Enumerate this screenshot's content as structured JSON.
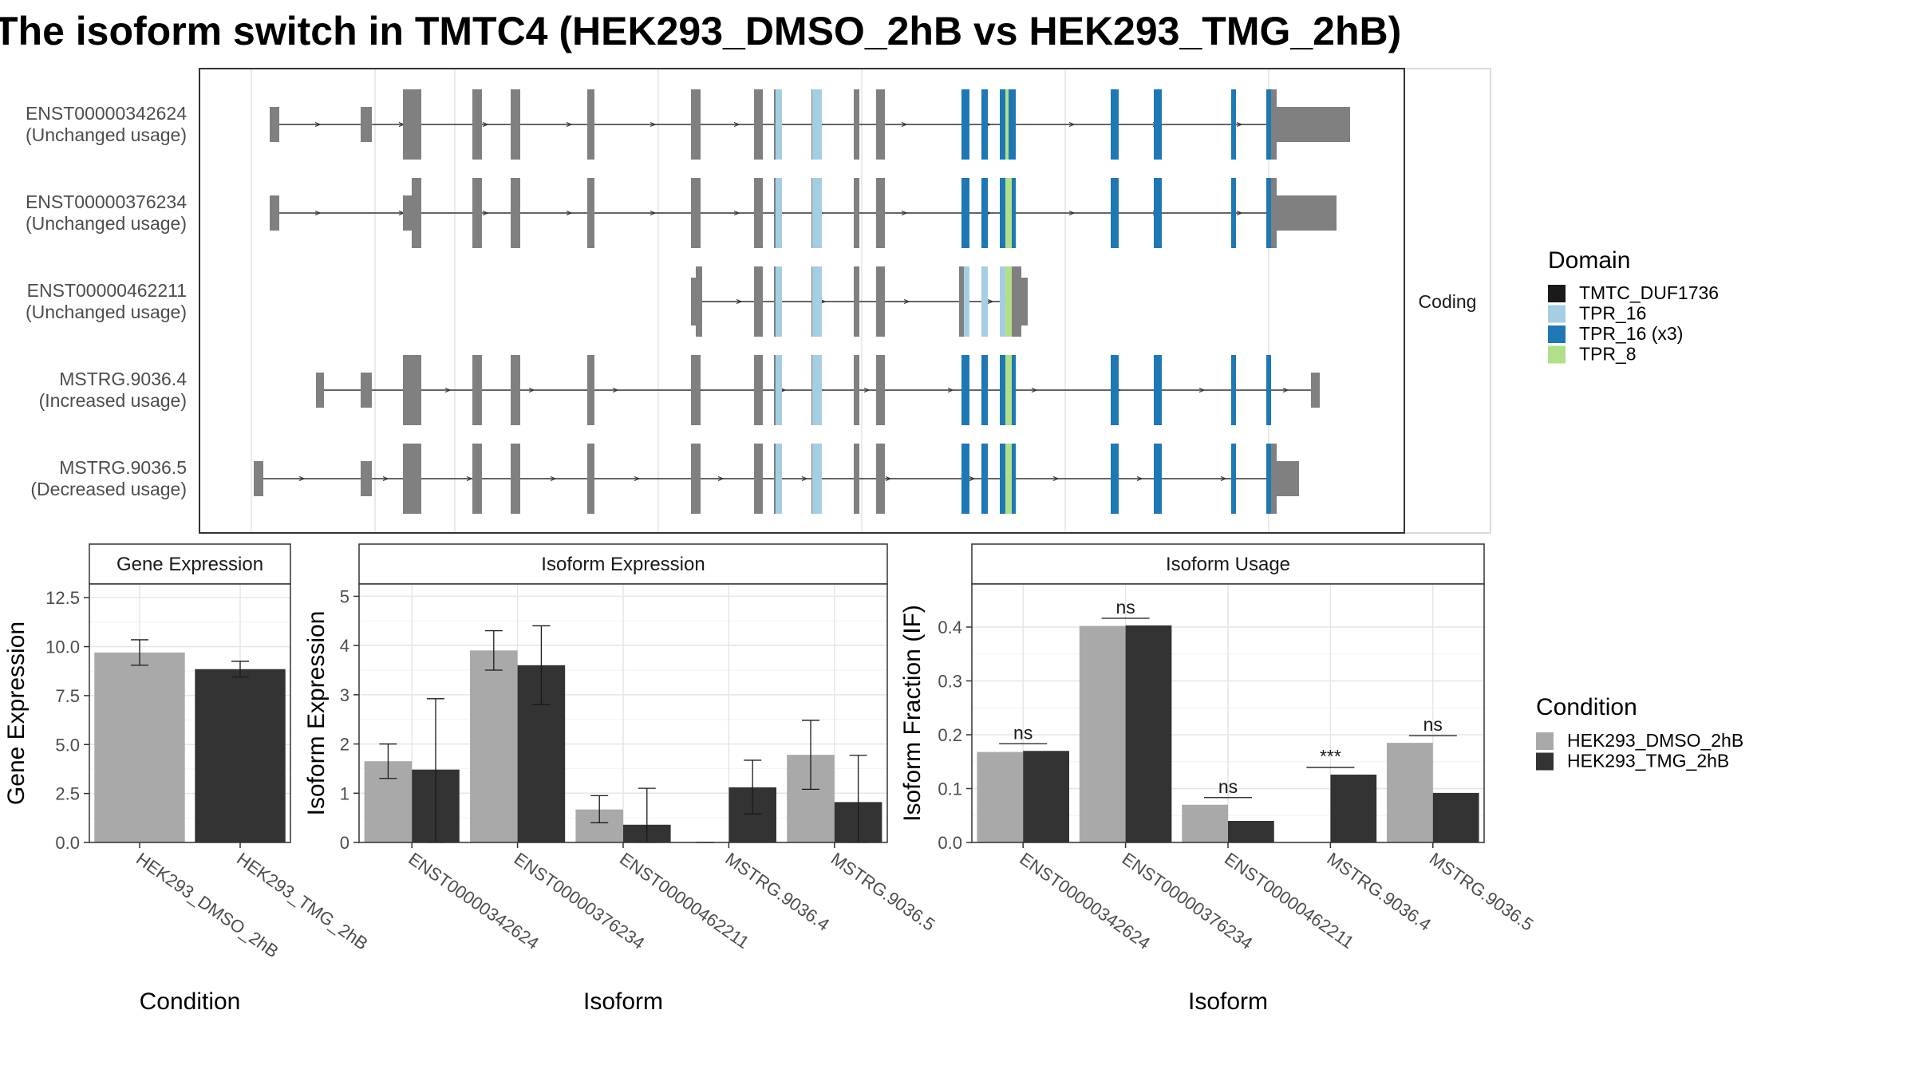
{
  "title": "The isoform switch in TMTC4 (HEK293_DMSO_2hB vs HEK293_TMG_2hB)",
  "structure": {
    "strip_label": "Coding",
    "transcripts": [
      {
        "id": "ENST00000342624",
        "usage": "(Unchanged usage)"
      },
      {
        "id": "ENST00000376234",
        "usage": "(Unchanged usage)"
      },
      {
        "id": "ENST00000462211",
        "usage": "(Unchanged usage)"
      },
      {
        "id": "MSTRG.9036.4",
        "usage": "(Increased usage)"
      },
      {
        "id": "MSTRG.9036.5",
        "usage": "(Decreased usage)"
      }
    ],
    "legend_title": "Domain",
    "domains": [
      {
        "name": "TMTC_DUF1736",
        "color": "#1a1a1a"
      },
      {
        "name": "TPR_16",
        "color": "#a6cee3"
      },
      {
        "name": "TPR_16 (x3)",
        "color": "#1f78b4"
      },
      {
        "name": "TPR_8",
        "color": "#b2df8a"
      }
    ],
    "exon_color": "#808080"
  },
  "condition_legend": {
    "title": "Condition",
    "items": [
      {
        "name": "HEK293_DMSO_2hB",
        "color": "#a9a9a9"
      },
      {
        "name": "HEK293_TMG_2hB",
        "color": "#333333"
      }
    ]
  },
  "chart_data": [
    {
      "type": "bar",
      "title": "Gene Expression",
      "xlabel": "Condition",
      "ylabel": "Gene Expression",
      "ylim": [
        0,
        13.2
      ],
      "yticks": [
        "0.0",
        "2.5",
        "5.0",
        "7.5",
        "10.0",
        "12.5"
      ],
      "categories": [
        "HEK293_DMSO_2hB",
        "HEK293_TMG_2hB"
      ],
      "values": [
        9.7,
        8.85
      ],
      "error_low": [
        9.05,
        8.45
      ],
      "error_high": [
        10.35,
        9.25
      ],
      "colors": [
        "#a9a9a9",
        "#333333"
      ]
    },
    {
      "type": "bar",
      "title": "Isoform Expression",
      "xlabel": "Isoform",
      "ylabel": "Isoform Expression",
      "ylim": [
        0,
        5.25
      ],
      "yticks": [
        "0",
        "1",
        "2",
        "3",
        "4",
        "5"
      ],
      "categories": [
        "ENST00000342624",
        "ENST00000376234",
        "ENST00000462211",
        "MSTRG.9036.4",
        "MSTRG.9036.5"
      ],
      "series": [
        {
          "name": "HEK293_DMSO_2hB",
          "values": [
            1.65,
            3.9,
            0.67,
            0.0,
            1.78
          ],
          "error_low": [
            1.3,
            3.5,
            0.4,
            0.0,
            1.08
          ],
          "error_high": [
            2.0,
            4.3,
            0.95,
            0.0,
            2.48
          ]
        },
        {
          "name": "HEK293_TMG_2hB",
          "values": [
            1.48,
            3.6,
            0.36,
            1.12,
            0.82
          ],
          "error_low": [
            0.0,
            2.8,
            0.0,
            0.58,
            0.0
          ],
          "error_high": [
            2.92,
            4.4,
            1.1,
            1.67,
            1.77
          ]
        }
      ]
    },
    {
      "type": "bar",
      "title": "Isoform Usage",
      "xlabel": "Isoform",
      "ylabel": "Isoform Fraction (IF)",
      "ylim": [
        0,
        0.48
      ],
      "yticks": [
        "0.0",
        "0.1",
        "0.2",
        "0.3",
        "0.4"
      ],
      "categories": [
        "ENST00000342624",
        "ENST00000376234",
        "ENST00000462211",
        "MSTRG.9036.4",
        "MSTRG.9036.5"
      ],
      "series": [
        {
          "name": "HEK293_DMSO_2hB",
          "values": [
            0.168,
            0.402,
            0.07,
            0.0,
            0.185
          ]
        },
        {
          "name": "HEK293_TMG_2hB",
          "values": [
            0.17,
            0.403,
            0.04,
            0.126,
            0.092
          ]
        }
      ],
      "significance": [
        "ns",
        "ns",
        "ns",
        "***",
        "ns"
      ]
    }
  ]
}
